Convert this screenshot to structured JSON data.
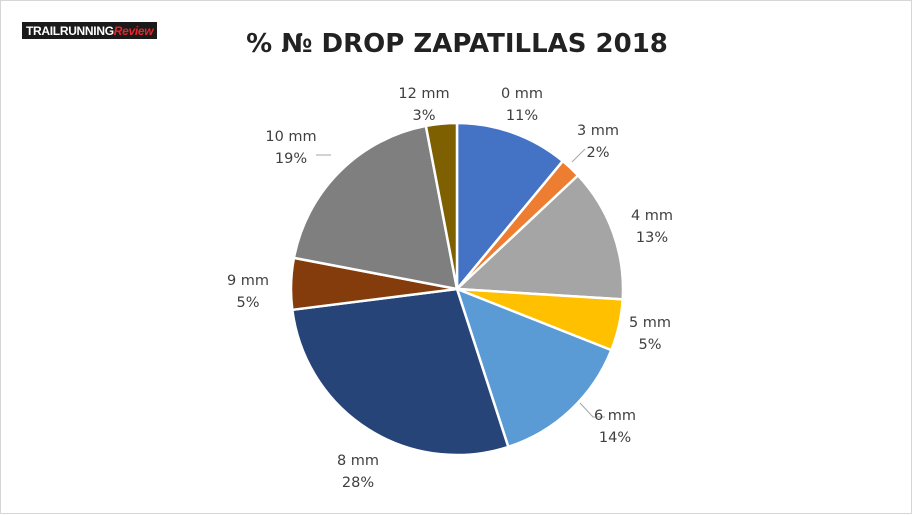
{
  "logo": {
    "part1": "TRAILRUNNING",
    "part2": "Review"
  },
  "chart_data": {
    "type": "pie",
    "title": "% № DROP ZAPATILLAS 2018",
    "slices": [
      {
        "label": "0 mm",
        "percent_label": "11%",
        "value": 11,
        "color": "#4472c4"
      },
      {
        "label": "3 mm",
        "percent_label": "2%",
        "value": 2,
        "color": "#ed7d31"
      },
      {
        "label": "4 mm",
        "percent_label": "13%",
        "value": 13,
        "color": "#a5a5a5"
      },
      {
        "label": "5 mm",
        "percent_label": "5%",
        "value": 5,
        "color": "#ffc000"
      },
      {
        "label": "6 mm",
        "percent_label": "14%",
        "value": 14,
        "color": "#5b9bd5"
      },
      {
        "label": "8 mm",
        "percent_label": "28%",
        "value": 28,
        "color": "#264478"
      },
      {
        "label": "9 mm",
        "percent_label": "5%",
        "value": 5,
        "color": "#843c0c"
      },
      {
        "label": "10 mm",
        "percent_label": "19%",
        "value": 19,
        "color": "#7f7f7f"
      },
      {
        "label": "12 mm",
        "percent_label": "3%",
        "value": 3,
        "color": "#7f6000"
      }
    ],
    "legend": "none"
  }
}
